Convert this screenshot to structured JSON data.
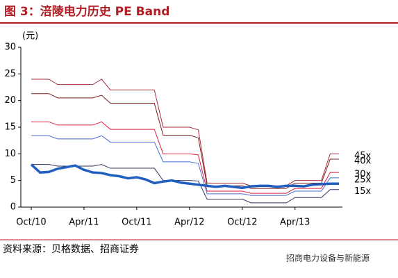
{
  "chart_data": {
    "type": "line",
    "title": "图 3：涪陵电力历史 PE Band",
    "y_label": "(元)",
    "source": "资料来源：贝格数据、招商证券",
    "watermark": "招商电力设备与新能源",
    "categories": [
      "Oct/10",
      null,
      null,
      null,
      null,
      null,
      "Apr/11",
      null,
      null,
      null,
      null,
      null,
      "Oct/11",
      null,
      null,
      null,
      null,
      null,
      "Apr/12",
      null,
      null,
      null,
      null,
      null,
      "Oct/12",
      null,
      null,
      null,
      null,
      null,
      "Apr/13",
      null,
      null,
      null,
      null,
      null
    ],
    "ylim": [
      0,
      30
    ],
    "yticks": [
      0,
      5,
      10,
      15,
      20,
      25,
      30
    ],
    "series": [
      {
        "name": "45x",
        "color": "#a52a3a",
        "values": [
          24,
          24,
          24,
          23,
          23,
          23,
          23,
          23,
          24,
          22,
          22,
          22,
          22,
          22,
          22,
          15,
          15,
          15,
          15,
          14.5,
          4.5,
          4.5,
          4.5,
          4.5,
          4.5,
          4,
          4,
          4,
          4,
          4,
          5,
          5,
          5,
          5,
          10,
          10
        ]
      },
      {
        "name": "40x",
        "color": "#7b1c1c",
        "values": [
          21.3,
          21.3,
          21.3,
          20.5,
          20.5,
          20.5,
          20.5,
          20.5,
          21,
          19.5,
          19.5,
          19.5,
          19.5,
          19.5,
          19.5,
          13.5,
          13.5,
          13.5,
          13.5,
          13,
          4,
          4,
          4,
          4,
          4,
          3.5,
          3.5,
          3.5,
          3.5,
          3.5,
          4.5,
          4.5,
          4.5,
          4.5,
          9,
          9
        ]
      },
      {
        "name": "30x",
        "color": "#e0203f",
        "values": [
          16,
          16,
          16,
          15.4,
          15.4,
          15.4,
          15.4,
          15.4,
          16,
          14.6,
          14.6,
          14.6,
          14.6,
          14.6,
          14.6,
          10,
          10,
          10,
          10,
          9.8,
          3,
          3,
          3,
          3,
          3,
          2.6,
          2.6,
          2.6,
          2.6,
          2.6,
          3.5,
          3.5,
          3.5,
          3.5,
          6.5,
          6.5
        ]
      },
      {
        "name": "25x",
        "color": "#4a6bd0",
        "values": [
          13.4,
          13.4,
          13.4,
          12.8,
          12.8,
          12.8,
          12.8,
          12.8,
          13.4,
          12.2,
          12.2,
          12.2,
          12.2,
          12.2,
          12.2,
          8.5,
          8.5,
          8.5,
          8.5,
          8.2,
          2.5,
          2.5,
          2.5,
          2.5,
          2.5,
          2.2,
          2.2,
          2.2,
          2.2,
          2.2,
          3,
          3,
          3,
          3,
          5.5,
          5.5
        ]
      },
      {
        "name": "15x",
        "color": "#303060",
        "values": [
          8,
          8,
          8,
          7.7,
          7.7,
          7.7,
          7.7,
          7.7,
          8,
          7.3,
          7.3,
          7.3,
          7.3,
          7.3,
          7.3,
          5,
          5,
          5,
          5,
          4.9,
          1.5,
          1.5,
          1.5,
          1.5,
          1.5,
          0.8,
          0.8,
          0.8,
          0.8,
          0.8,
          1.8,
          1.8,
          1.8,
          1.8,
          3.3,
          3.3
        ]
      },
      {
        "color": "#1f5fbf",
        "values": [
          8,
          6.5,
          6.6,
          7.2,
          7.5,
          7.8,
          7,
          6.5,
          6.4,
          6,
          5.8,
          5.4,
          5.6,
          5.2,
          4.5,
          4.8,
          5,
          4.6,
          4.4,
          4.2,
          4,
          3.8,
          4,
          3.8,
          3.6,
          3.9,
          4,
          4,
          3.8,
          4,
          4,
          3.9,
          4.2,
          4.3,
          4.4,
          4.4
        ]
      }
    ]
  }
}
